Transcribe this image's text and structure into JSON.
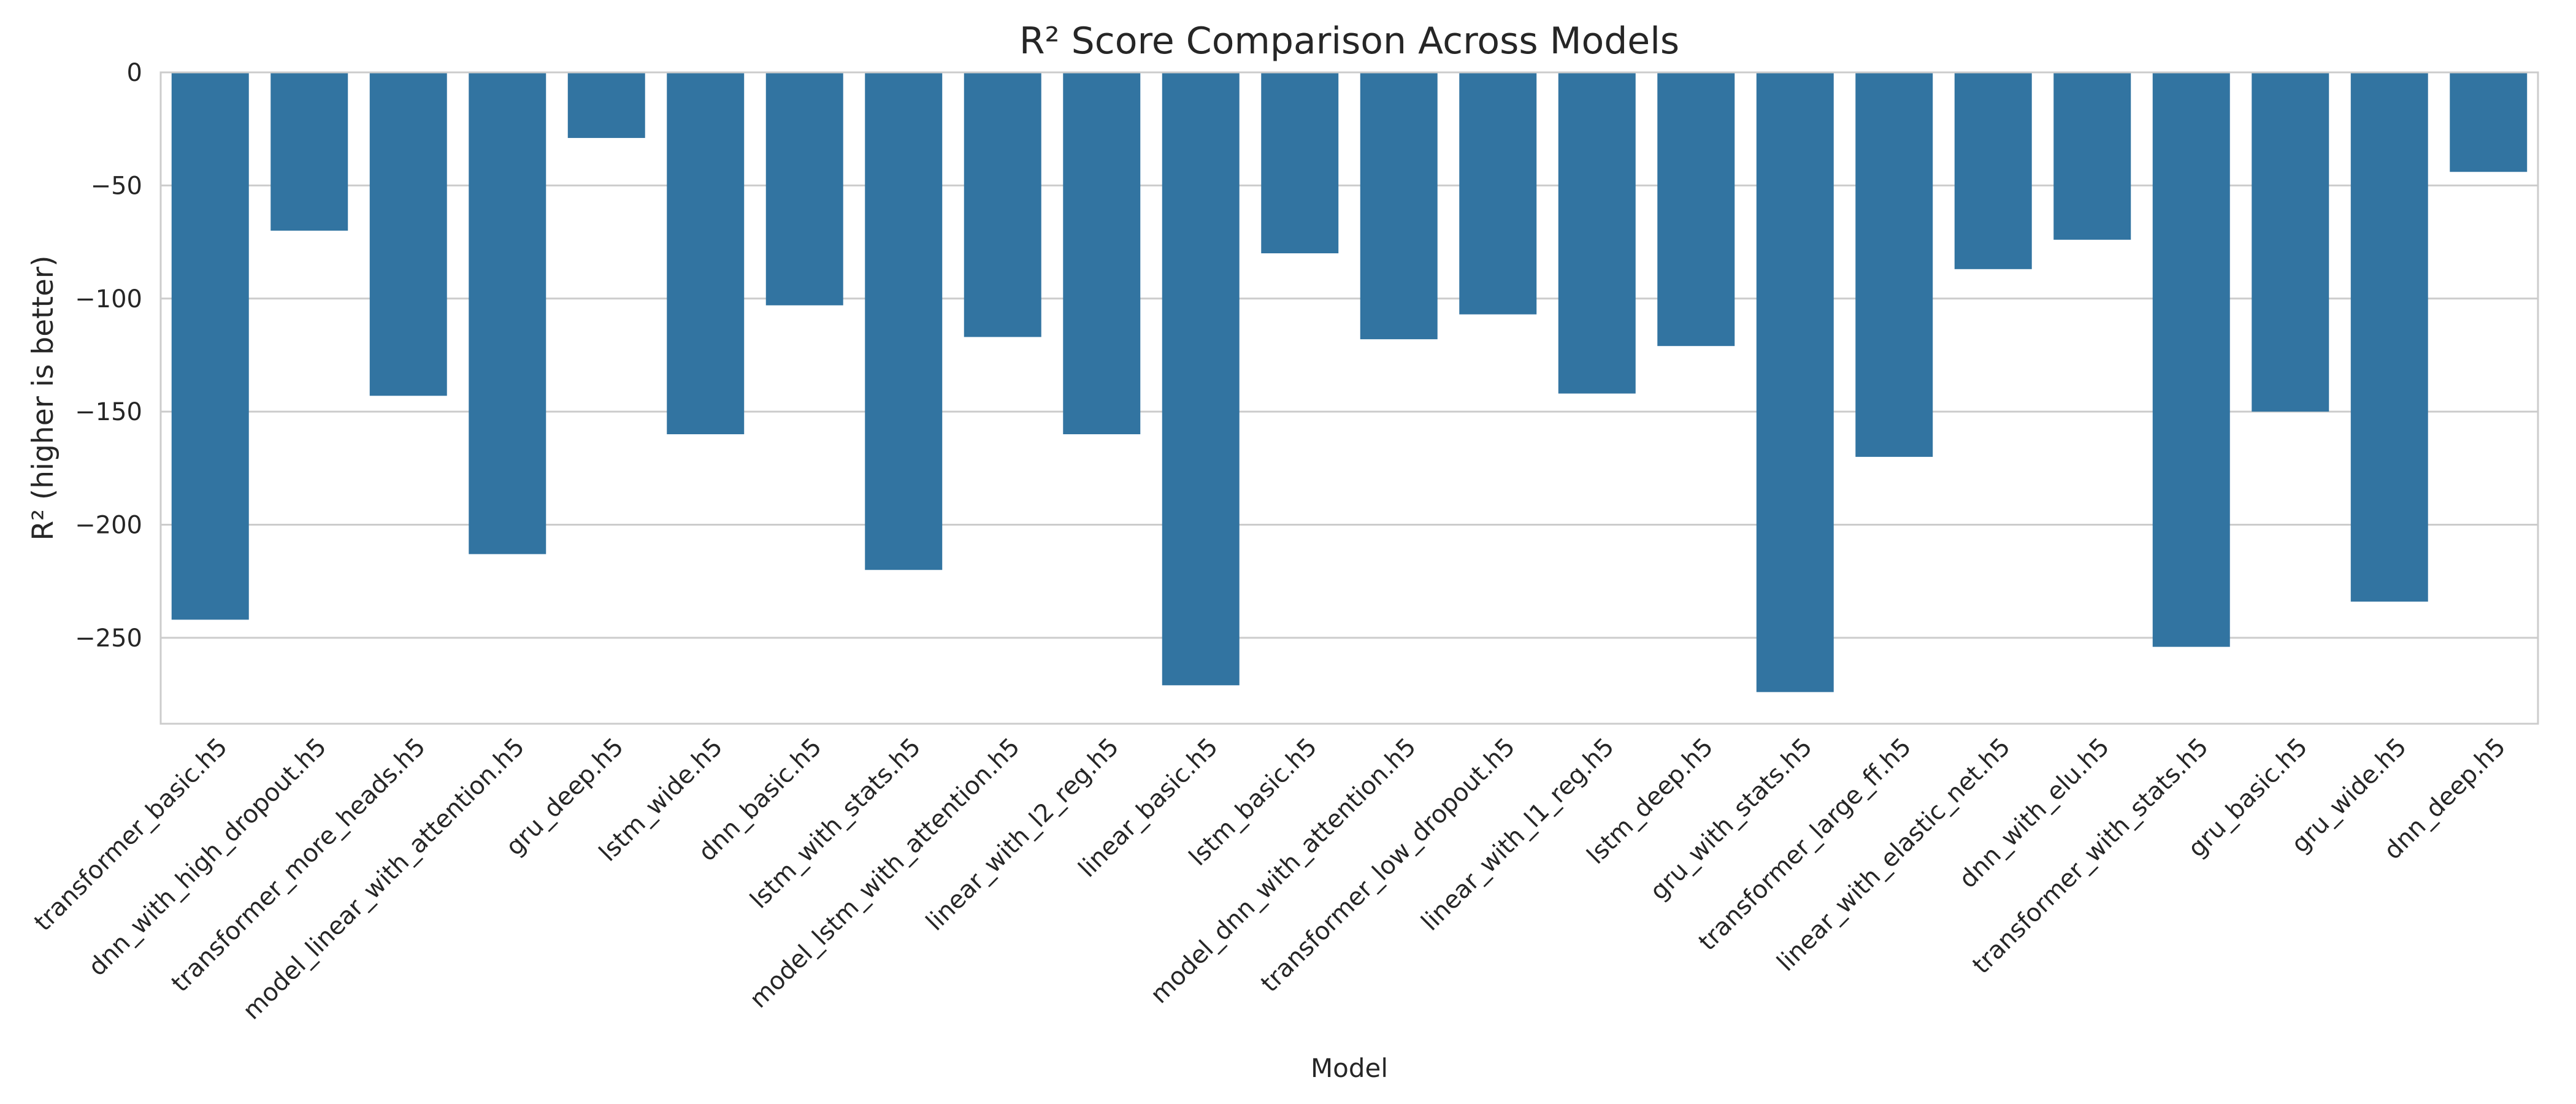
{
  "chart_data": {
    "type": "bar",
    "title": "R² Score Comparison Across Models",
    "xlabel": "Model",
    "ylabel": "R² (higher is better)",
    "ylim": [
      -288,
      0
    ],
    "yticks": [
      0,
      -50,
      -100,
      -150,
      -200,
      -250
    ],
    "ytick_labels": [
      "0",
      "−50",
      "−100",
      "−150",
      "−200",
      "−250"
    ],
    "grid": "horizontal",
    "bar_color": "#3274a1",
    "categories": [
      "transformer_basic.h5",
      "dnn_with_high_dropout.h5",
      "transformer_more_heads.h5",
      "model_linear_with_attention.h5",
      "gru_deep.h5",
      "lstm_wide.h5",
      "dnn_basic.h5",
      "lstm_with_stats.h5",
      "model_lstm_with_attention.h5",
      "linear_with_l2_reg.h5",
      "linear_basic.h5",
      "lstm_basic.h5",
      "model_dnn_with_attention.h5",
      "transformer_low_dropout.h5",
      "linear_with_l1_reg.h5",
      "lstm_deep.h5",
      "gru_with_stats.h5",
      "transformer_large_ff.h5",
      "linear_with_elastic_net.h5",
      "dnn_with_elu.h5",
      "transformer_with_stats.h5",
      "gru_basic.h5",
      "gru_wide.h5",
      "dnn_deep.h5"
    ],
    "values": [
      -242,
      -70,
      -143,
      -213,
      -29,
      -160,
      -103,
      -220,
      -117,
      -160,
      -271,
      -80,
      -118,
      -107,
      -142,
      -121,
      -274,
      -170,
      -87,
      -74,
      -254,
      -150,
      -234,
      -44
    ]
  }
}
